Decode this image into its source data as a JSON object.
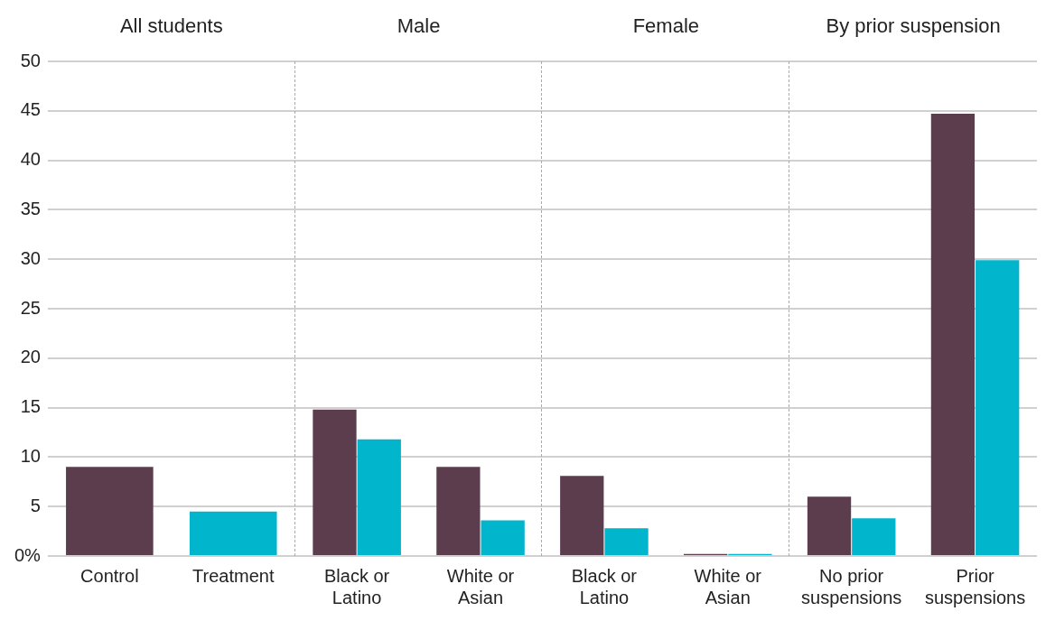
{
  "chart_data": {
    "type": "bar",
    "categories": [
      "Control",
      "Treatment",
      "Black or Latino",
      "White or Asian",
      "Black or Latino",
      "White or Asian",
      "No prior suspensions",
      "Prior suspensions"
    ],
    "series": [
      {
        "color": "#5c3d4e",
        "values": [
          9,
          null,
          14.8,
          9,
          8.1,
          0.2,
          6,
          44.7
        ]
      },
      {
        "color": "#00b5cc",
        "values": [
          null,
          4.5,
          11.8,
          3.6,
          2.8,
          0.2,
          3.8,
          29.9
        ]
      }
    ],
    "annotations": [
      "All students",
      "Male",
      "Female",
      "By prior suspension"
    ],
    "ylim": [
      0,
      50
    ],
    "yticks": [
      {
        "value": 0,
        "label": "0%"
      },
      5,
      10,
      15,
      20,
      25,
      30,
      35,
      40,
      45,
      50
    ],
    "grid": "y",
    "legend": false
  }
}
